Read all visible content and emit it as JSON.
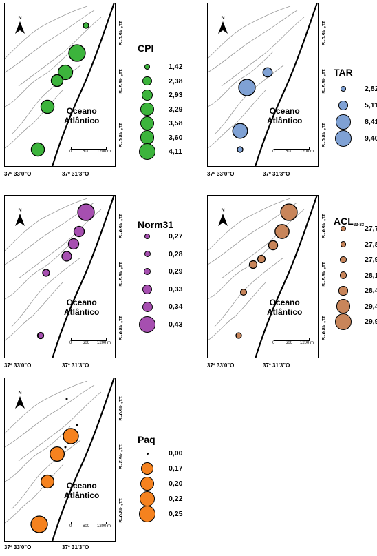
{
  "common": {
    "north_label": "N",
    "ocean_line1": "Oceano",
    "ocean_line2": "Atlântico",
    "scale_labels": [
      "0",
      "600",
      "1200 m"
    ],
    "lat_labels": [
      "11° 45'0\"S",
      "11° 46'3\"S",
      "11° 48'0\"S"
    ],
    "lon_labels": [
      "37º 33'0\"O",
      "37º 31'3\"O"
    ]
  },
  "panels": [
    {
      "id": "cpi",
      "title": "CPI",
      "color": "#3cb43c",
      "legend": [
        {
          "label": "1,42",
          "value": 1.42
        },
        {
          "label": "2,38",
          "value": 2.38
        },
        {
          "label": "2,93",
          "value": 2.93
        },
        {
          "label": "3,29",
          "value": 3.29
        },
        {
          "label": "3,58",
          "value": 3.58
        },
        {
          "label": "3,60",
          "value": 3.6
        },
        {
          "label": "4,11",
          "value": 4.11
        }
      ],
      "sites": [
        1.42,
        4.11,
        3.6,
        2.93,
        3.29,
        3.29,
        2.93
      ]
    },
    {
      "id": "tar",
      "title": "TAR",
      "color": "#7fa1d4",
      "legend": [
        {
          "label": "2,82",
          "value": 2.82
        },
        {
          "label": "5,11",
          "value": 5.11
        },
        {
          "label": "8,41",
          "value": 8.41
        },
        {
          "label": "9,40",
          "value": 9.4
        }
      ],
      "sites": [
        5.11,
        9.4,
        8.41,
        2.82
      ]
    },
    {
      "id": "norm31",
      "title": "Norm31",
      "color": "#a64fb0",
      "legend": [
        {
          "label": "0,27",
          "value": 0.27
        },
        {
          "label": "0,28",
          "value": 0.28
        },
        {
          "label": "0,29",
          "value": 0.29
        },
        {
          "label": "0,33",
          "value": 0.33
        },
        {
          "label": "0,34",
          "value": 0.34
        },
        {
          "label": "0,43",
          "value": 0.43
        }
      ],
      "sites": [
        0.43,
        0.34,
        0.34,
        0.33,
        0.29,
        0.28,
        0.27
      ]
    },
    {
      "id": "acl",
      "title": "ACL",
      "title_sub": "23-33",
      "color": "#c8855a",
      "legend": [
        {
          "label": "27,7",
          "value": 27.7
        },
        {
          "label": "27,8",
          "value": 27.8
        },
        {
          "label": "27,9",
          "value": 27.9
        },
        {
          "label": "28,1",
          "value": 28.1
        },
        {
          "label": "28,4",
          "value": 28.4
        },
        {
          "label": "29,4",
          "value": 29.4
        },
        {
          "label": "29,9",
          "value": 29.9
        }
      ],
      "sites": [
        29.9,
        29.4,
        28.4,
        28.1,
        28.1,
        27.8,
        27.7
      ]
    },
    {
      "id": "paq",
      "title": "Paq",
      "color": "#f5821f",
      "legend": [
        {
          "label": "0,00",
          "value": 0.0
        },
        {
          "label": "0,17",
          "value": 0.17
        },
        {
          "label": "0,20",
          "value": 0.2
        },
        {
          "label": "0,22",
          "value": 0.22
        },
        {
          "label": "0,25",
          "value": 0.25
        }
      ],
      "sites": [
        0.0,
        0.0,
        0.22,
        0.0,
        0.2,
        0.17,
        0.25
      ]
    }
  ]
}
